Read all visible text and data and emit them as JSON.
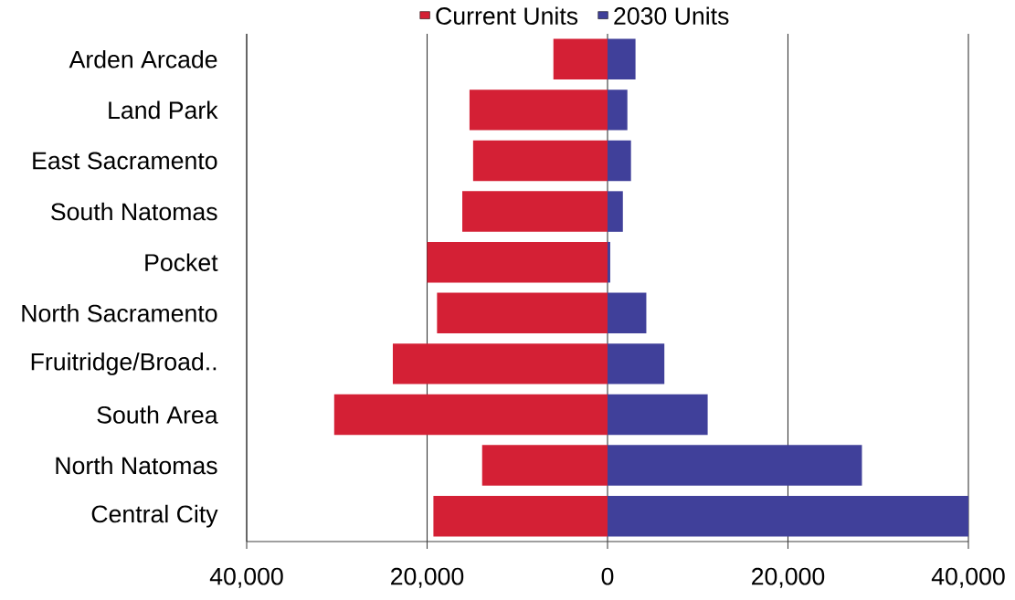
{
  "chart_data": {
    "type": "bar",
    "orientation": "horizontal",
    "stacked": true,
    "categories": [
      "Arden Arcade",
      "Land Park",
      "East Sacramento",
      "South Natomas",
      "Pocket",
      "North Sacramento",
      "Fruitridge/Broad..",
      "South Area",
      "North Natomas",
      "Central City"
    ],
    "series": [
      {
        "name": "Current Units",
        "color": "#d42035",
        "values": [
          -6000,
          -15300,
          -14900,
          -16100,
          -20000,
          -18900,
          -23800,
          -30300,
          -13900,
          -19300
        ]
      },
      {
        "name": "2030 Units",
        "color": "#40409a",
        "values": [
          3100,
          2200,
          2600,
          1700,
          300,
          4300,
          6300,
          11100,
          28200,
          40000
        ]
      }
    ],
    "xlim": [
      -40000,
      40000
    ],
    "xticks": [
      {
        "value": -40000,
        "label": "40,000"
      },
      {
        "value": -20000,
        "label": "20,000"
      },
      0,
      {
        "value": 20000,
        "label": "20,000"
      },
      {
        "value": 40000,
        "label": "40,000"
      }
    ],
    "grid": "x",
    "legend": "top"
  }
}
